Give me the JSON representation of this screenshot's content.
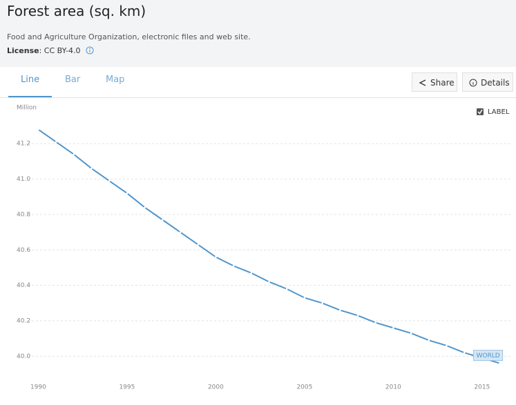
{
  "header": {
    "title": "Forest area (sq. km)",
    "source": "Food and Agriculture Organization, electronic files and web site.",
    "license_label": "License",
    "license_value": ": CC BY-4.0"
  },
  "tabs": [
    "Line",
    "Bar",
    "Map"
  ],
  "buttons": [
    "Share",
    "Details"
  ],
  "label_toggle": "LABEL",
  "chart_data": {
    "type": "line",
    "y_label": "Million",
    "x": [
      1990,
      1991,
      1992,
      1993,
      1994,
      1995,
      1996,
      1997,
      1998,
      1999,
      2000,
      2001,
      2002,
      2003,
      2004,
      2005,
      2006,
      2007,
      2008,
      2009,
      2010,
      2011,
      2012,
      2013,
      2014,
      2015,
      2016
    ],
    "series": [
      {
        "name": "WORLD",
        "color": "#4f95cc",
        "values": [
          41.28,
          41.21,
          41.14,
          41.06,
          40.99,
          40.92,
          40.84,
          40.77,
          40.7,
          40.63,
          40.56,
          40.51,
          40.47,
          40.42,
          40.38,
          40.33,
          40.3,
          40.26,
          40.23,
          40.19,
          40.16,
          40.13,
          40.09,
          40.06,
          40.02,
          39.99,
          39.96
        ]
      }
    ],
    "xlim": [
      1989.4,
      2016.6
    ],
    "xticks": [
      1990,
      1995,
      2000,
      2005,
      2010,
      2015
    ],
    "ylim": [
      39.9,
      41.38
    ],
    "yticks": [
      {
        "value": 40,
        "label": "40.0"
      },
      40.2,
      40.4,
      40.6,
      40.8,
      {
        "value": 41,
        "label": "41.0"
      },
      41.2
    ],
    "grid": true
  }
}
